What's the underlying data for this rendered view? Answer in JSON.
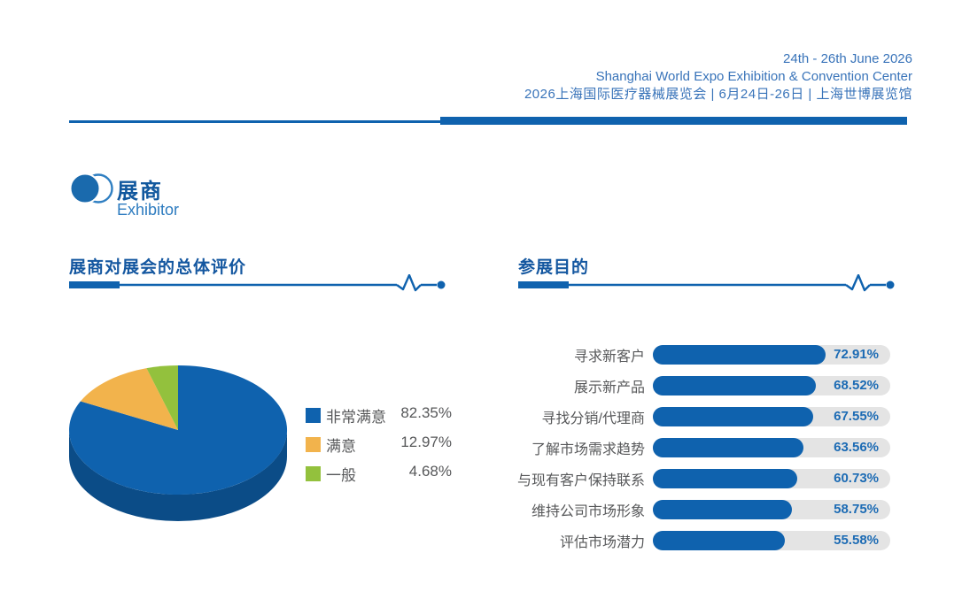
{
  "header": {
    "line1": "24th - 26th June 2026",
    "line2": "Shanghai World Expo Exhibition & Convention Center",
    "line3": "2026上海国际医疗器械展览会 | 6月24日-26日 | 上海世博展览馆"
  },
  "exhibitor": {
    "title_cn": "展商",
    "title_en": "Exhibitor"
  },
  "satisfaction": {
    "title": "展商对展会的总体评价",
    "legend": [
      {
        "label": "非常满意",
        "value": "82.35%",
        "color": "#0F62AE"
      },
      {
        "label": "满意",
        "value": "12.97%",
        "color": "#F2B34C"
      },
      {
        "label": "一般",
        "value": "4.68%",
        "color": "#93C13D"
      }
    ]
  },
  "purpose": {
    "title": "参展目的",
    "bars": [
      {
        "label": "寻求新客户",
        "value": 72.91,
        "display": "72.91%"
      },
      {
        "label": "展示新产品",
        "value": 68.52,
        "display": "68.52%"
      },
      {
        "label": "寻找分销/代理商",
        "value": 67.55,
        "display": "67.55%"
      },
      {
        "label": "了解市场需求趋势",
        "value": 63.56,
        "display": "63.56%"
      },
      {
        "label": "与现有客户保持联系",
        "value": 60.73,
        "display": "60.73%"
      },
      {
        "label": "维持公司市场形象",
        "value": 58.75,
        "display": "58.75%"
      },
      {
        "label": "评估市场潜力",
        "value": 55.58,
        "display": "55.58%"
      }
    ]
  },
  "colors": {
    "primary_blue": "#0F62AE",
    "pie_side_blue": "#0B4C87",
    "orange": "#F2B34C",
    "green": "#93C13D",
    "track_gray": "#E4E4E4",
    "text_gray": "#57585A",
    "header_blue": "#3873B9",
    "title_blue": "#11589E"
  },
  "chart_data": [
    {
      "type": "pie",
      "title": "展商对展会的总体评价",
      "labels": [
        "非常满意",
        "满意",
        "一般"
      ],
      "values": [
        82.35,
        12.97,
        4.68
      ],
      "colors": [
        "#0F62AE",
        "#F2B34C",
        "#93C13D"
      ],
      "unit": "%",
      "style": "3d",
      "start_angle": "top",
      "direction": "clockwise",
      "legend_position": "right"
    },
    {
      "type": "bar",
      "title": "参展目的",
      "orientation": "horizontal",
      "categories": [
        "寻求新客户",
        "展示新产品",
        "寻找分销/代理商",
        "了解市场需求趋势",
        "与现有客户保持联系",
        "维持公司市场形象",
        "评估市场潜力"
      ],
      "values": [
        72.91,
        68.52,
        67.55,
        63.56,
        60.73,
        58.75,
        55.58
      ],
      "unit": "%",
      "xlim": [
        0,
        100
      ],
      "bar_color": "#0F62AE",
      "track_color": "#E4E4E4",
      "grid": false
    }
  ]
}
